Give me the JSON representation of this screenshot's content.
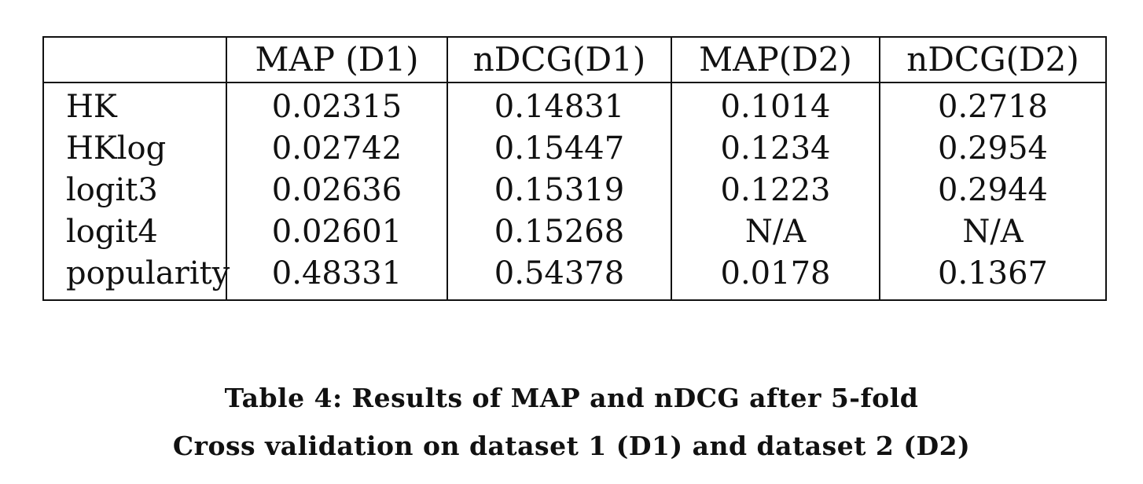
{
  "table": {
    "columns": [
      "",
      "MAP (D1)",
      "nDCG(D1)",
      "MAP(D2)",
      "nDCG(D2)"
    ],
    "rows": [
      {
        "name": "HK",
        "values": [
          "0.02315",
          "0.14831",
          "0.1014",
          "0.2718"
        ]
      },
      {
        "name": "HKlog",
        "values": [
          "0.02742",
          "0.15447",
          "0.1234",
          "0.2954"
        ]
      },
      {
        "name": "logit3",
        "values": [
          "0.02636",
          "0.15319",
          "0.1223",
          "0.2944"
        ]
      },
      {
        "name": "logit4",
        "values": [
          "0.02601",
          "0.15268",
          "N/A",
          "N/A"
        ]
      },
      {
        "name": "popularity",
        "values": [
          "0.48331",
          "0.54378",
          "0.0178",
          "0.1367"
        ]
      }
    ]
  },
  "caption": {
    "line1": "Table 4: Results of MAP and nDCG after 5-fold",
    "line2": "Cross validation on dataset 1 (D1) and dataset 2 (D2)"
  }
}
